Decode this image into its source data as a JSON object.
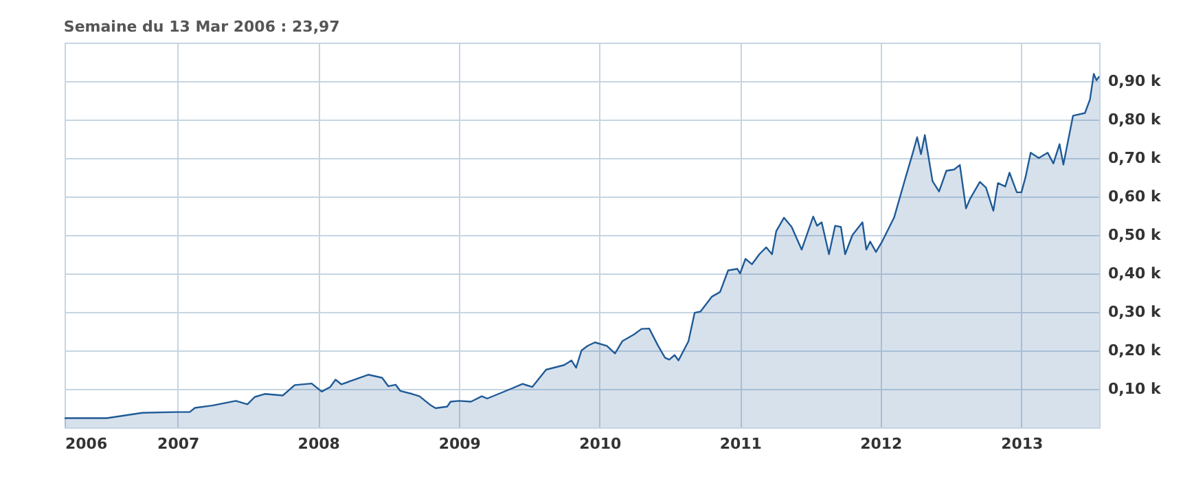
{
  "chart_data": {
    "type": "area",
    "title": "Semaine du 13 Mar 2006 : 23,97",
    "xlim": [
      "2006-03-13",
      "2013-07-22"
    ],
    "xticks": [
      {
        "value": "2006-03-13",
        "label": "2006"
      },
      {
        "value": "2007-01-01",
        "label": "2007"
      },
      {
        "value": "2008-01-01",
        "label": "2008"
      },
      {
        "value": "2009-01-01",
        "label": "2009"
      },
      {
        "value": "2010-01-01",
        "label": "2010"
      },
      {
        "value": "2011-01-01",
        "label": "2011"
      },
      {
        "value": "2012-01-01",
        "label": "2012"
      },
      {
        "value": "2013-01-01",
        "label": "2013"
      }
    ],
    "ylim": [
      0,
      1
    ],
    "yticks": [
      {
        "value": 0.1,
        "label": "0,10 k"
      },
      {
        "value": 0.2,
        "label": "0,20 k"
      },
      {
        "value": 0.3,
        "label": "0,30 k"
      },
      {
        "value": 0.4,
        "label": "0,40 k"
      },
      {
        "value": 0.5,
        "label": "0,50 k"
      },
      {
        "value": 0.6,
        "label": "0,60 k"
      },
      {
        "value": 0.7,
        "label": "0,70 k"
      },
      {
        "value": 0.8,
        "label": "0,80 k"
      },
      {
        "value": 0.9,
        "label": "0,90 k"
      }
    ],
    "grid": true,
    "marker": "none",
    "line_style": "solid",
    "series": [
      {
        "color": "#1f5a96",
        "x": [
          "2006-03-13",
          "2006-07-01",
          "2006-10-01",
          "2007-01-01",
          "2007-02-01",
          "2007-02-15",
          "2007-04-01",
          "2007-06-01",
          "2007-07-01",
          "2007-07-20",
          "2007-08-15",
          "2007-10-01",
          "2007-11-01",
          "2007-12-15",
          "2008-01-10",
          "2008-02-01",
          "2008-02-15",
          "2008-03-01",
          "2008-04-01",
          "2008-05-10",
          "2008-06-15",
          "2008-07-01",
          "2008-07-20",
          "2008-08-01",
          "2008-09-01",
          "2008-09-20",
          "2008-10-20",
          "2008-11-01",
          "2008-12-01",
          "2008-12-10",
          "2009-01-01",
          "2009-02-01",
          "2009-03-01",
          "2009-03-15",
          "2009-05-15",
          "2009-06-15",
          "2009-07-10",
          "2009-08-15",
          "2009-10-01",
          "2009-10-20",
          "2009-11-01",
          "2009-11-15",
          "2009-12-01",
          "2009-12-20",
          "2010-01-20",
          "2010-02-10",
          "2010-03-01",
          "2010-04-01",
          "2010-04-20",
          "2010-05-10",
          "2010-06-01",
          "2010-06-20",
          "2010-07-01",
          "2010-07-15",
          "2010-07-25",
          "2010-08-20",
          "2010-09-05",
          "2010-09-20",
          "2010-10-20",
          "2010-11-10",
          "2010-12-01",
          "2010-12-25",
          "2011-01-01",
          "2011-01-15",
          "2011-02-01",
          "2011-02-20",
          "2011-03-10",
          "2011-03-25",
          "2011-04-05",
          "2011-04-25",
          "2011-05-15",
          "2011-06-10",
          "2011-07-10",
          "2011-07-20",
          "2011-08-01",
          "2011-08-20",
          "2011-09-05",
          "2011-09-20",
          "2011-10-01",
          "2011-10-20",
          "2011-11-15",
          "2011-11-25",
          "2011-12-05",
          "2011-12-20",
          "2012-01-05",
          "2012-02-05",
          "2012-03-05",
          "2012-03-25",
          "2012-04-05",
          "2012-04-15",
          "2012-04-25",
          "2012-05-15",
          "2012-06-01",
          "2012-06-20",
          "2012-07-10",
          "2012-07-25",
          "2012-08-10",
          "2012-08-20",
          "2012-09-15",
          "2012-10-01",
          "2012-10-20",
          "2012-11-01",
          "2012-11-20",
          "2012-12-01",
          "2012-12-20",
          "2013-01-01",
          "2013-01-12",
          "2013-01-25",
          "2013-02-15",
          "2013-03-10",
          "2013-03-25",
          "2013-04-10",
          "2013-04-20",
          "2013-05-15",
          "2013-06-15",
          "2013-06-28",
          "2013-07-08",
          "2013-07-15",
          "2013-07-22"
        ],
        "values": [
          0.024,
          0.024,
          0.038,
          0.04,
          0.04,
          0.051,
          0.057,
          0.069,
          0.06,
          0.079,
          0.087,
          0.083,
          0.11,
          0.114,
          0.093,
          0.105,
          0.124,
          0.112,
          0.123,
          0.137,
          0.129,
          0.107,
          0.111,
          0.095,
          0.087,
          0.081,
          0.057,
          0.05,
          0.054,
          0.067,
          0.069,
          0.067,
          0.081,
          0.075,
          0.1,
          0.113,
          0.105,
          0.15,
          0.162,
          0.174,
          0.155,
          0.2,
          0.212,
          0.221,
          0.212,
          0.192,
          0.224,
          0.242,
          0.256,
          0.257,
          0.214,
          0.181,
          0.176,
          0.188,
          0.174,
          0.224,
          0.298,
          0.301,
          0.34,
          0.352,
          0.408,
          0.412,
          0.4,
          0.438,
          0.424,
          0.45,
          0.468,
          0.45,
          0.51,
          0.545,
          0.521,
          0.462,
          0.548,
          0.524,
          0.533,
          0.45,
          0.524,
          0.521,
          0.45,
          0.5,
          0.533,
          0.462,
          0.483,
          0.456,
          0.483,
          0.545,
          0.646,
          0.714,
          0.754,
          0.71,
          0.76,
          0.64,
          0.613,
          0.667,
          0.67,
          0.682,
          0.569,
          0.593,
          0.638,
          0.623,
          0.563,
          0.635,
          0.626,
          0.662,
          0.611,
          0.611,
          0.652,
          0.714,
          0.7,
          0.714,
          0.686,
          0.736,
          0.683,
          0.81,
          0.817,
          0.852,
          0.919,
          0.902,
          0.912
        ]
      }
    ]
  }
}
